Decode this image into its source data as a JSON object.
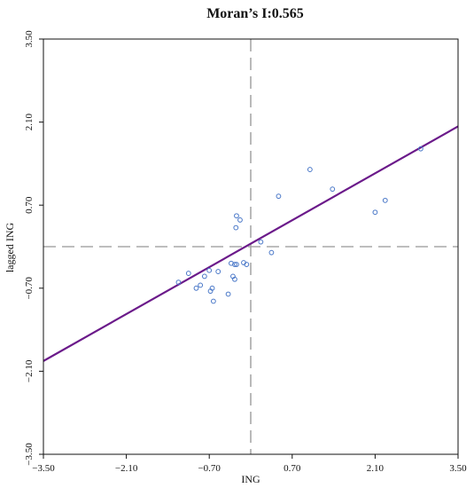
{
  "chart_data": {
    "type": "scatter",
    "title": "Moran’s I:0.565",
    "xlabel": "ING",
    "ylabel": "lagged ING",
    "xlim": [
      -3.5,
      3.5
    ],
    "ylim": [
      -3.5,
      3.5
    ],
    "xticks": [
      "−3.50",
      "−2.10",
      "−0.70",
      "0.70",
      "2.10",
      "3.50"
    ],
    "yticks": [
      "−3.50",
      "−2.10",
      "−0.70",
      "0.70",
      "2.10",
      "3.50"
    ],
    "tick_values": [
      -3.5,
      -2.1,
      -0.7,
      0.7,
      2.1,
      3.5
    ],
    "reference_x": 0,
    "reference_y": 0,
    "regression": {
      "slope": 0.565,
      "intercept": 0.05
    },
    "points": [
      {
        "x": -1.22,
        "y": -0.6
      },
      {
        "x": -1.05,
        "y": -0.45
      },
      {
        "x": -0.92,
        "y": -0.7
      },
      {
        "x": -0.85,
        "y": -0.65
      },
      {
        "x": -0.78,
        "y": -0.5
      },
      {
        "x": -0.7,
        "y": -0.4
      },
      {
        "x": -0.68,
        "y": -0.75
      },
      {
        "x": -0.65,
        "y": -0.7
      },
      {
        "x": -0.63,
        "y": -0.92
      },
      {
        "x": -0.55,
        "y": -0.42
      },
      {
        "x": -0.38,
        "y": -0.8
      },
      {
        "x": -0.33,
        "y": -0.28
      },
      {
        "x": -0.3,
        "y": -0.5
      },
      {
        "x": -0.27,
        "y": -0.55
      },
      {
        "x": -0.27,
        "y": -0.3
      },
      {
        "x": -0.24,
        "y": -0.3
      },
      {
        "x": -0.25,
        "y": 0.32
      },
      {
        "x": -0.24,
        "y": 0.52
      },
      {
        "x": -0.18,
        "y": 0.45
      },
      {
        "x": -0.12,
        "y": -0.27
      },
      {
        "x": -0.07,
        "y": -0.3
      },
      {
        "x": 0.17,
        "y": 0.08
      },
      {
        "x": 0.35,
        "y": -0.1
      },
      {
        "x": 0.47,
        "y": 0.85
      },
      {
        "x": 1.0,
        "y": 1.3
      },
      {
        "x": 1.38,
        "y": 0.97
      },
      {
        "x": 2.1,
        "y": 0.58
      },
      {
        "x": 2.27,
        "y": 0.78
      },
      {
        "x": 2.87,
        "y": 1.65
      }
    ]
  },
  "colors": {
    "point": "#4a78c8",
    "regression_line": "#6b1a8a",
    "reference_line": "#a8a8a8",
    "axis": "#111111"
  }
}
